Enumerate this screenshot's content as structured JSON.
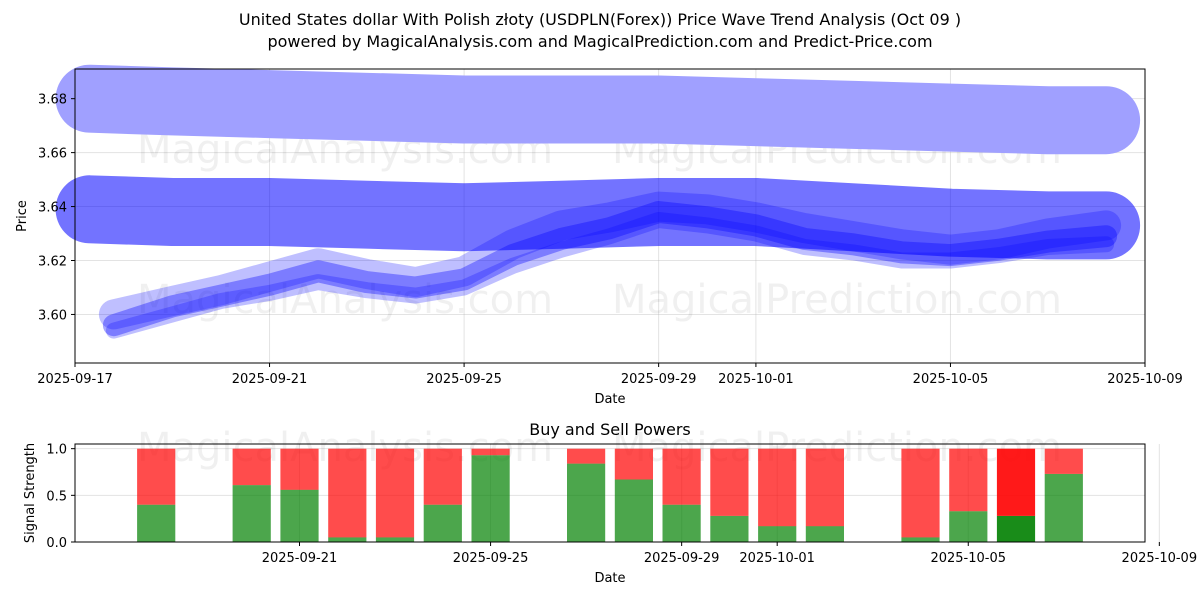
{
  "header": {
    "title_line1": "United States dollar With Polish złoty (USDPLN(Forex)) Price Wave Trend Analysis (Oct 09 )",
    "title_line2": "powered by MagicalAnalysis.com and MagicalPrediction.com and Predict-Price.com"
  },
  "watermarks": {
    "left": "MagicalAnalysis.com",
    "right": "MagicalPrediction.com"
  },
  "colors": {
    "wave": "#0000ff",
    "band_top": "#a0a0ff",
    "buy": "#008000",
    "sell": "#ff0000"
  },
  "chart_data": [
    {
      "type": "line",
      "title": "",
      "xlabel": "Date",
      "ylabel": "Price",
      "x_start": "2025-09-17",
      "x_end": "2025-10-09",
      "xlim_days": [
        0,
        22
      ],
      "ylim": [
        3.582,
        3.691
      ],
      "x_ticks": [
        {
          "day": 0,
          "label": "2025-09-17"
        },
        {
          "day": 4,
          "label": "2025-09-21"
        },
        {
          "day": 8,
          "label": "2025-09-25"
        },
        {
          "day": 12,
          "label": "2025-09-29"
        },
        {
          "day": 14,
          "label": "2025-10-01"
        },
        {
          "day": 18,
          "label": "2025-10-05"
        },
        {
          "day": 22,
          "label": "2025-10-09"
        }
      ],
      "y_ticks": [
        {
          "value": 3.6,
          "label": "3.60"
        },
        {
          "value": 3.62,
          "label": "3.62"
        },
        {
          "value": 3.64,
          "label": "3.64"
        },
        {
          "value": 3.66,
          "label": "3.66"
        },
        {
          "value": 3.68,
          "label": "3.68"
        }
      ],
      "series": [
        {
          "name": "upper-band",
          "x": [
            0.3,
            2,
            4,
            6,
            8,
            10,
            12,
            14,
            16,
            18,
            20,
            21.2
          ],
          "y": [
            3.68,
            3.679,
            3.678,
            3.677,
            3.676,
            3.676,
            3.676,
            3.675,
            3.674,
            3.673,
            3.672,
            3.672
          ]
        },
        {
          "name": "mid-band",
          "x": [
            0.3,
            2,
            4,
            6,
            8,
            10,
            12,
            14,
            16,
            18,
            20,
            21.2
          ],
          "y": [
            3.639,
            3.638,
            3.638,
            3.637,
            3.636,
            3.637,
            3.638,
            3.638,
            3.636,
            3.634,
            3.633,
            3.633
          ]
        },
        {
          "name": "wave-a",
          "x": [
            0.8,
            2,
            3,
            4,
            5,
            6,
            7,
            8,
            9,
            10,
            11,
            12,
            13,
            14,
            15,
            16,
            17,
            18,
            19,
            20,
            21.2
          ],
          "y": [
            3.596,
            3.603,
            3.607,
            3.611,
            3.616,
            3.612,
            3.61,
            3.613,
            3.622,
            3.628,
            3.632,
            3.638,
            3.636,
            3.633,
            3.628,
            3.626,
            3.623,
            3.622,
            3.624,
            3.627,
            3.629
          ]
        },
        {
          "name": "wave-b",
          "x": [
            0.8,
            2,
            3,
            4,
            5,
            6,
            7,
            8,
            9,
            10,
            11,
            12,
            13,
            14,
            15,
            16,
            17,
            18,
            19,
            20,
            21.2
          ],
          "y": [
            3.6,
            3.605,
            3.609,
            3.614,
            3.619,
            3.615,
            3.612,
            3.616,
            3.626,
            3.633,
            3.636,
            3.64,
            3.639,
            3.636,
            3.632,
            3.629,
            3.626,
            3.624,
            3.626,
            3.63,
            3.633
          ]
        },
        {
          "name": "wave-c",
          "x": [
            0.8,
            2,
            3,
            4,
            5,
            6,
            7,
            8,
            9,
            10,
            11,
            12,
            13,
            14,
            15,
            16,
            17,
            18,
            19,
            20,
            21.2
          ],
          "y": [
            3.594,
            3.6,
            3.605,
            3.608,
            3.612,
            3.609,
            3.607,
            3.61,
            3.618,
            3.624,
            3.629,
            3.635,
            3.633,
            3.63,
            3.625,
            3.623,
            3.62,
            3.62,
            3.622,
            3.625,
            3.626
          ]
        }
      ]
    },
    {
      "type": "bar",
      "title": "Buy and Sell Powers",
      "xlabel": "Date",
      "ylabel": "Signal Strength",
      "ylim": [
        0,
        1.05
      ],
      "y_ticks": [
        {
          "value": 0.0,
          "label": "0.0"
        },
        {
          "value": 0.5,
          "label": "0.5"
        },
        {
          "value": 1.0,
          "label": "1.0"
        }
      ],
      "x_ticks": [
        {
          "day": 4,
          "label": "2025-09-21"
        },
        {
          "day": 8,
          "label": "2025-09-25"
        },
        {
          "day": 12,
          "label": "2025-09-29"
        },
        {
          "day": 14,
          "label": "2025-10-01"
        },
        {
          "day": 18,
          "label": "2025-10-05"
        },
        {
          "day": 22,
          "label": "2025-10-09"
        }
      ],
      "categories": [
        "2025-09-19",
        "2025-09-21",
        "2025-09-22",
        "2025-09-23",
        "2025-09-24",
        "2025-09-25",
        "2025-09-26",
        "2025-09-28",
        "2025-09-29",
        "2025-09-30",
        "2025-10-01",
        "2025-10-02",
        "2025-10-03",
        "2025-10-05",
        "2025-10-06",
        "2025-10-07",
        "2025-10-08"
      ],
      "bar_days": [
        1,
        3,
        4,
        5,
        6,
        7,
        8,
        10,
        11,
        12,
        13,
        14,
        15,
        17,
        18,
        19,
        20
      ],
      "series": [
        {
          "name": "Buy",
          "values": [
            0.4,
            0.61,
            0.56,
            0.05,
            0.05,
            0.4,
            0.93,
            0.84,
            0.67,
            0.4,
            0.28,
            0.17,
            0.17,
            0.05,
            0.33,
            0.28,
            0.73
          ]
        },
        {
          "name": "Sell",
          "values": [
            0.6,
            0.39,
            0.44,
            0.95,
            0.95,
            0.6,
            0.07,
            0.16,
            0.33,
            0.6,
            0.72,
            0.83,
            0.83,
            0.95,
            0.67,
            0.72,
            0.27
          ]
        }
      ],
      "highlight_index": 15
    }
  ]
}
